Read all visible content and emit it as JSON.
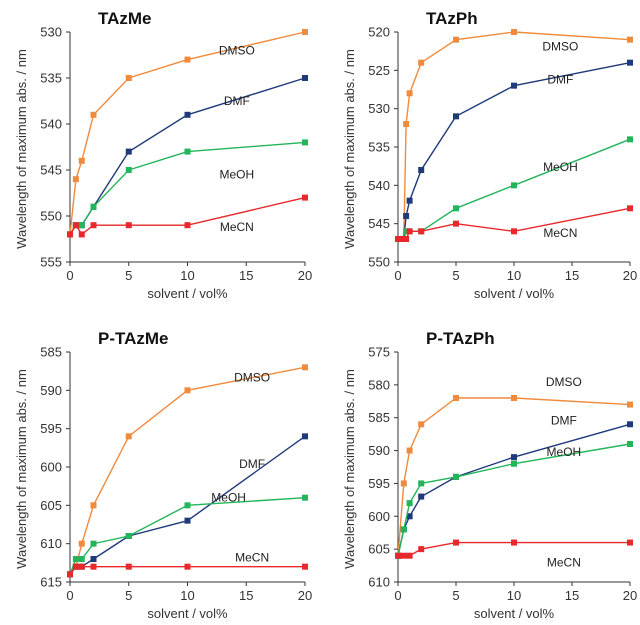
{
  "chart_data": [
    {
      "type": "line",
      "title": "TAzMe",
      "xlabel": "solvent / vol%",
      "ylabel": "Wavelength of maximum abs. / nm",
      "xlim": [
        0,
        20
      ],
      "ylim": [
        530,
        555
      ],
      "y_inverted": true,
      "xticks": [
        0,
        5,
        10,
        15,
        20
      ],
      "yticks": [
        530,
        535,
        540,
        545,
        550,
        555
      ],
      "series": [
        {
          "name": "DMSO",
          "color": "#f08a3c",
          "x": [
            0,
            0.5,
            1,
            2,
            5,
            10,
            20
          ],
          "y": [
            552,
            546,
            544,
            539,
            535,
            533,
            530
          ]
        },
        {
          "name": "DMF",
          "color": "#1f3a7a",
          "x": [
            0,
            0.5,
            1,
            2,
            5,
            10,
            20
          ],
          "y": [
            552,
            551,
            551,
            549,
            543,
            539,
            535
          ]
        },
        {
          "name": "MeOH",
          "color": "#22b55a",
          "x": [
            0,
            0.5,
            1,
            2,
            5,
            10,
            20
          ],
          "y": [
            552,
            551,
            551,
            549,
            545,
            543,
            542
          ]
        },
        {
          "name": "MeCN",
          "color": "#e8282a",
          "x": [
            0,
            0.5,
            1,
            2,
            5,
            10,
            20
          ],
          "y": [
            552,
            551,
            552,
            551,
            551,
            551,
            548
          ]
        }
      ]
    },
    {
      "type": "line",
      "title": "TAzPh",
      "xlabel": "solvent / vol%",
      "ylabel": "Wavelength of maximum abs. / nm",
      "xlim": [
        0,
        20
      ],
      "ylim": [
        520,
        550
      ],
      "y_inverted": true,
      "xticks": [
        0,
        5,
        10,
        15,
        20
      ],
      "yticks": [
        520,
        525,
        530,
        535,
        540,
        545,
        550
      ],
      "series": [
        {
          "name": "DMSO",
          "color": "#f08a3c",
          "x": [
            0,
            0.5,
            0.7,
            1,
            2,
            5,
            10,
            20
          ],
          "y": [
            547,
            547,
            532,
            528,
            524,
            521,
            520,
            521
          ]
        },
        {
          "name": "DMF",
          "color": "#1f3a7a",
          "x": [
            0,
            0.5,
            0.7,
            1,
            2,
            5,
            10,
            20
          ],
          "y": [
            547,
            547,
            544,
            542,
            538,
            531,
            527,
            524
          ]
        },
        {
          "name": "MeOH",
          "color": "#22b55a",
          "x": [
            0,
            0.5,
            0.7,
            1,
            2,
            5,
            10,
            20
          ],
          "y": [
            547,
            547,
            546,
            546,
            546,
            543,
            540,
            534
          ]
        },
        {
          "name": "MeCN",
          "color": "#e8282a",
          "x": [
            0,
            0.5,
            0.7,
            1,
            2,
            5,
            10,
            20
          ],
          "y": [
            547,
            547,
            547,
            546,
            546,
            545,
            546,
            543
          ]
        }
      ]
    },
    {
      "type": "line",
      "title": "P-TAzMe",
      "xlabel": "solvent / vol%",
      "ylabel": "Wavelength of maximum abs. / nm",
      "xlim": [
        0,
        20
      ],
      "ylim": [
        585,
        615
      ],
      "y_inverted": true,
      "xticks": [
        0,
        5,
        10,
        15,
        20
      ],
      "yticks": [
        585,
        590,
        595,
        600,
        605,
        610,
        615
      ],
      "series": [
        {
          "name": "DMSO",
          "color": "#f08a3c",
          "x": [
            0,
            0.5,
            1,
            2,
            5,
            10,
            20
          ],
          "y": [
            614,
            613,
            610,
            605,
            596,
            590,
            587
          ]
        },
        {
          "name": "DMF",
          "color": "#1f3a7a",
          "x": [
            0,
            0.5,
            1,
            2,
            5,
            10,
            20
          ],
          "y": [
            614,
            613,
            613,
            612,
            609,
            607,
            596
          ]
        },
        {
          "name": "MeOH",
          "color": "#22b55a",
          "x": [
            0,
            0.5,
            1,
            2,
            5,
            10,
            20
          ],
          "y": [
            614,
            612,
            612,
            610,
            609,
            605,
            604
          ]
        },
        {
          "name": "MeCN",
          "color": "#e8282a",
          "x": [
            0,
            0.5,
            1,
            2,
            5,
            10,
            20
          ],
          "y": [
            614,
            613,
            613,
            613,
            613,
            613,
            613
          ]
        }
      ]
    },
    {
      "type": "line",
      "title": "P-TAzPh",
      "xlabel": "solvent / vol%",
      "ylabel": "Wavelength of maximum abs. / nm",
      "xlim": [
        0,
        20
      ],
      "ylim": [
        575,
        610
      ],
      "y_inverted": true,
      "xticks": [
        0,
        5,
        10,
        15,
        20
      ],
      "yticks": [
        575,
        580,
        585,
        590,
        595,
        600,
        605,
        610
      ],
      "series": [
        {
          "name": "DMSO",
          "color": "#f08a3c",
          "x": [
            0,
            0.5,
            1,
            2,
            5,
            10,
            20
          ],
          "y": [
            606,
            595,
            590,
            586,
            582,
            582,
            583
          ]
        },
        {
          "name": "DMF",
          "color": "#1f3a7a",
          "x": [
            0,
            0.5,
            1,
            2,
            5,
            10,
            20
          ],
          "y": [
            606,
            602,
            600,
            597,
            594,
            591,
            586
          ]
        },
        {
          "name": "MeOH",
          "color": "#22b55a",
          "x": [
            0,
            0.5,
            1,
            2,
            5,
            10,
            20
          ],
          "y": [
            606,
            602,
            598,
            595,
            594,
            592,
            589
          ]
        },
        {
          "name": "MeCN",
          "color": "#e8282a",
          "x": [
            0,
            0.5,
            1,
            2,
            5,
            10,
            20
          ],
          "y": [
            606,
            606,
            606,
            605,
            604,
            604,
            604
          ]
        }
      ]
    }
  ]
}
